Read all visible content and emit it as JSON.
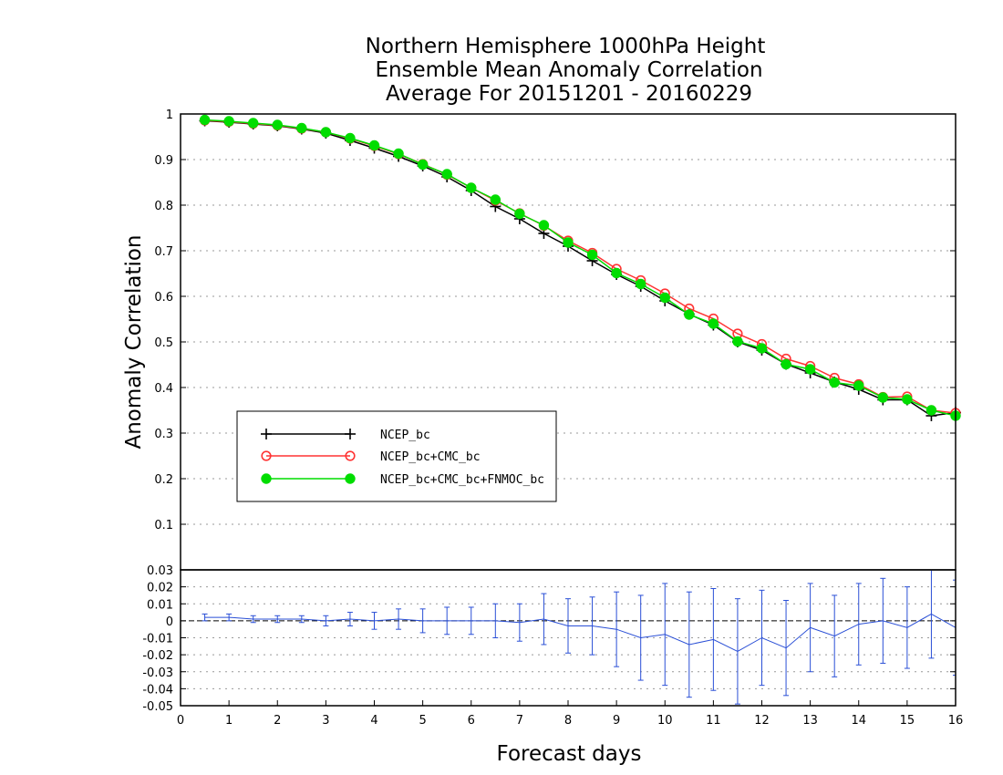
{
  "chart_data": [
    {
      "type": "line",
      "title": [
        "Northern Hemisphere 1000hPa Height",
        "Ensemble Mean Anomaly Correlation",
        "Average For 20151201 - 20160229"
      ],
      "xlabel": "Forecast days",
      "ylabel": "Anomaly Correlation",
      "xlim": [
        0,
        16
      ],
      "ylim": [
        0,
        1
      ],
      "x_ticks": [
        "0",
        "1",
        "2",
        "3",
        "4",
        "5",
        "6",
        "7",
        "8",
        "9",
        "10",
        "11",
        "12",
        "13",
        "14",
        "15",
        "16"
      ],
      "y_ticks": [
        "0.1",
        "0.2",
        "0.3",
        "0.4",
        "0.5",
        "0.6",
        "0.7",
        "0.8",
        "0.9",
        "1"
      ],
      "grid": true,
      "legend_position": "left-lower",
      "x": [
        0.5,
        1,
        1.5,
        2,
        2.5,
        3,
        3.5,
        4,
        4.5,
        5,
        5.5,
        6,
        6.5,
        7,
        7.5,
        8,
        8.5,
        9,
        9.5,
        10,
        10.5,
        11,
        11.5,
        12,
        12.5,
        13,
        13.5,
        14,
        14.5,
        15,
        15.5,
        16
      ],
      "series": [
        {
          "name": "NCEP_bc",
          "color": "#000000",
          "marker": "plus",
          "values": [
            0.985,
            0.982,
            0.978,
            0.974,
            0.967,
            0.958,
            0.942,
            0.925,
            0.907,
            0.886,
            0.862,
            0.832,
            0.797,
            0.77,
            0.738,
            0.71,
            0.678,
            0.648,
            0.622,
            0.59,
            0.561,
            0.537,
            0.5,
            0.482,
            0.451,
            0.432,
            0.412,
            0.396,
            0.373,
            0.373,
            0.338,
            0.345
          ]
        },
        {
          "name": "NCEP_bc+CMC_bc",
          "color": "#ff3333",
          "marker": "open-circle",
          "values": [
            0.986,
            0.983,
            0.979,
            0.975,
            0.968,
            0.96,
            0.946,
            0.93,
            0.912,
            0.89,
            0.867,
            0.838,
            0.81,
            0.782,
            0.755,
            0.722,
            0.695,
            0.66,
            0.635,
            0.606,
            0.573,
            0.551,
            0.518,
            0.495,
            0.463,
            0.447,
            0.421,
            0.407,
            0.379,
            0.38,
            0.35,
            0.344
          ]
        },
        {
          "name": "NCEP_bc+CMC_bc+FNMOC_bc",
          "color": "#00dd00",
          "marker": "filled-circle",
          "values": [
            0.987,
            0.984,
            0.98,
            0.976,
            0.969,
            0.96,
            0.947,
            0.931,
            0.913,
            0.889,
            0.868,
            0.838,
            0.812,
            0.781,
            0.756,
            0.718,
            0.691,
            0.651,
            0.627,
            0.597,
            0.56,
            0.54,
            0.501,
            0.486,
            0.451,
            0.44,
            0.411,
            0.404,
            0.378,
            0.374,
            0.35,
            0.338
          ]
        }
      ]
    },
    {
      "type": "line",
      "xlim": [
        0,
        16
      ],
      "ylim": [
        -0.05,
        0.03
      ],
      "y_ticks": [
        "0.03",
        "0.02",
        "0.01",
        "0",
        "-0.01",
        "-0.02",
        "-0.03",
        "-0.04",
        "-0.05"
      ],
      "grid": true,
      "color": "#2a4fd6",
      "x": [
        0.5,
        1,
        1.5,
        2,
        2.5,
        3,
        3.5,
        4,
        4.5,
        5,
        5.5,
        6,
        6.5,
        7,
        7.5,
        8,
        8.5,
        9,
        9.5,
        10,
        10.5,
        11,
        11.5,
        12,
        12.5,
        13,
        13.5,
        14,
        14.5,
        15,
        15.5,
        16
      ],
      "values": [
        0.002,
        0.002,
        0.001,
        0.001,
        0.001,
        0.0,
        0.001,
        0.0,
        0.001,
        0.0,
        0.0,
        0.0,
        0.0,
        -0.001,
        0.001,
        -0.003,
        -0.003,
        -0.005,
        -0.01,
        -0.008,
        -0.014,
        -0.011,
        -0.018,
        -0.01,
        -0.016,
        -0.004,
        -0.009,
        -0.002,
        0.0,
        -0.004,
        0.004,
        -0.004
      ],
      "error_bars": [
        0.002,
        0.002,
        0.002,
        0.002,
        0.002,
        0.003,
        0.004,
        0.005,
        0.006,
        0.007,
        0.008,
        0.008,
        0.01,
        0.011,
        0.015,
        0.016,
        0.017,
        0.022,
        0.025,
        0.03,
        0.031,
        0.03,
        0.031,
        0.028,
        0.028,
        0.026,
        0.024,
        0.024,
        0.025,
        0.024,
        0.026,
        0.028
      ]
    }
  ]
}
